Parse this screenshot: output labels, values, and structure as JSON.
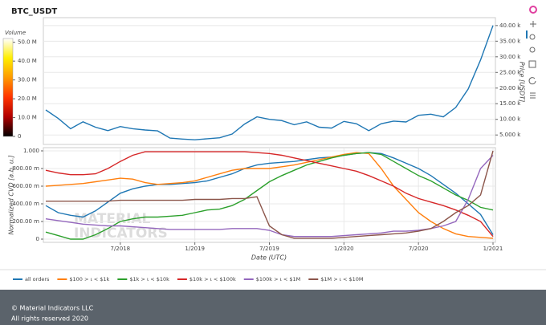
{
  "chart_data": [
    {
      "type": "line",
      "title": "BTC_USDT",
      "y_label": "Price [USDT]",
      "y_axis_side": "right",
      "grid": true,
      "x": [
        "2018-01",
        "2018-02",
        "2018-03",
        "2018-04",
        "2018-05",
        "2018-06",
        "2018-07",
        "2018-08",
        "2018-09",
        "2018-10",
        "2018-11",
        "2018-12",
        "2019-01",
        "2019-02",
        "2019-03",
        "2019-04",
        "2019-05",
        "2019-06",
        "2019-07",
        "2019-08",
        "2019-09",
        "2019-10",
        "2019-11",
        "2019-12",
        "2020-01",
        "2020-02",
        "2020-03",
        "2020-04",
        "2020-05",
        "2020-06",
        "2020-07",
        "2020-08",
        "2020-09",
        "2020-10",
        "2020-11",
        "2020-12",
        "2021-01"
      ],
      "xlim": [
        "2018-01",
        "2021-01"
      ],
      "series": [
        {
          "color": "#1f77b4",
          "values": [
            13000,
            10300,
            7000,
            9200,
            7500,
            6400,
            7700,
            7000,
            6600,
            6300,
            4000,
            3700,
            3450,
            3800,
            4100,
            5300,
            8500,
            10800,
            10000,
            9600,
            8300,
            9200,
            7500,
            7200,
            9350,
            8600,
            6400,
            8600,
            9450,
            9150,
            11300,
            11650,
            10800,
            13800,
            19700,
            29000,
            40000
          ]
        }
      ],
      "ylim": [
        3000,
        41500
      ],
      "yticks": [
        {
          "value": 5000,
          "label": "5.000 k"
        },
        {
          "value": 10000,
          "label": "10.00 k"
        },
        {
          "value": 15000,
          "label": "15.00 k"
        },
        {
          "value": 20000,
          "label": "20.00 k"
        },
        {
          "value": 25000,
          "label": "25.00 k"
        },
        {
          "value": 30000,
          "label": "30.00 k"
        },
        {
          "value": 35000,
          "label": "35.00 k"
        },
        {
          "value": 40000,
          "label": "40.00 k"
        }
      ],
      "colorbar": {
        "label": "Volume",
        "lim": [
          0,
          52000000
        ],
        "colors": [
          "#000000",
          "#b00000",
          "#ff3300",
          "#ff9900",
          "#ffee00",
          "#ffffff"
        ],
        "ticks": [
          0,
          {
            "value": 10000000,
            "label": "10.0 M"
          },
          {
            "value": 20000000,
            "label": "20.0 M"
          },
          {
            "value": 30000000,
            "label": "30.0 M"
          },
          {
            "value": 40000000,
            "label": "40.0 M"
          },
          {
            "value": 50000000,
            "label": "50.0 M"
          }
        ]
      }
    },
    {
      "type": "line",
      "y_label": "Normalized CVD [a.b. u.]",
      "x_label": "Date (UTC)",
      "grid": true,
      "watermark": [
        "MATERIAL",
        "INDICATORS"
      ],
      "x": [
        "2018-01",
        "2018-02",
        "2018-03",
        "2018-04",
        "2018-05",
        "2018-06",
        "2018-07",
        "2018-08",
        "2018-09",
        "2018-10",
        "2018-11",
        "2018-12",
        "2019-01",
        "2019-02",
        "2019-03",
        "2019-04",
        "2019-05",
        "2019-06",
        "2019-07",
        "2019-08",
        "2019-09",
        "2019-10",
        "2019-11",
        "2019-12",
        "2020-01",
        "2020-02",
        "2020-03",
        "2020-04",
        "2020-05",
        "2020-06",
        "2020-07",
        "2020-08",
        "2020-09",
        "2020-10",
        "2020-11",
        "2020-12",
        "2021-01"
      ],
      "xlim": [
        "2018-01",
        "2021-01"
      ],
      "xticks": [
        {
          "value": "2018-07",
          "label": "7/2018"
        },
        {
          "value": "2019-01",
          "label": "1/2019"
        },
        {
          "value": "2019-07",
          "label": "7/2019"
        },
        {
          "value": "2020-01",
          "label": "1/2020"
        },
        {
          "value": "2020-07",
          "label": "7/2020"
        },
        {
          "value": "2021-01",
          "label": "1/2021"
        }
      ],
      "ylim": [
        0,
        1
      ],
      "yticks": [
        0,
        {
          "value": 0.2,
          "label": "200.00 m"
        },
        {
          "value": 0.4,
          "label": "400.00 m"
        },
        {
          "value": 0.6,
          "label": "600.00 m"
        },
        {
          "value": 0.8,
          "label": "800.00 m"
        },
        {
          "value": 1,
          "label": "1.000"
        }
      ],
      "series": [
        {
          "name": "all orders",
          "color": "#1f77b4",
          "values": [
            0.38,
            0.3,
            0.27,
            0.25,
            0.32,
            0.42,
            0.52,
            0.57,
            0.6,
            0.62,
            0.62,
            0.63,
            0.64,
            0.66,
            0.7,
            0.74,
            0.8,
            0.84,
            0.86,
            0.87,
            0.88,
            0.9,
            0.92,
            0.93,
            0.95,
            0.97,
            0.98,
            0.97,
            0.92,
            0.86,
            0.8,
            0.72,
            0.62,
            0.52,
            0.4,
            0.28,
            0.05
          ]
        },
        {
          "name": "$100 > ι < $1k",
          "color": "#ff7f0e",
          "values": [
            0.6,
            0.61,
            0.62,
            0.63,
            0.65,
            0.67,
            0.69,
            0.68,
            0.64,
            0.62,
            0.63,
            0.64,
            0.66,
            0.7,
            0.74,
            0.78,
            0.8,
            0.8,
            0.8,
            0.82,
            0.84,
            0.87,
            0.9,
            0.93,
            0.96,
            0.98,
            0.97,
            0.8,
            0.6,
            0.45,
            0.3,
            0.2,
            0.12,
            0.06,
            0.03,
            0.02,
            0.01
          ]
        },
        {
          "name": "$1k > ι < $10k",
          "color": "#2ca02c",
          "values": [
            0.08,
            0.04,
            0.0,
            0.0,
            0.05,
            0.12,
            0.2,
            0.23,
            0.25,
            0.25,
            0.26,
            0.27,
            0.3,
            0.33,
            0.34,
            0.38,
            0.45,
            0.55,
            0.65,
            0.72,
            0.78,
            0.84,
            0.88,
            0.92,
            0.95,
            0.97,
            0.98,
            0.96,
            0.88,
            0.8,
            0.72,
            0.66,
            0.58,
            0.5,
            0.44,
            0.36,
            0.33
          ]
        },
        {
          "name": "$10k > ι < $100k",
          "color": "#d62728",
          "values": [
            0.78,
            0.75,
            0.73,
            0.73,
            0.74,
            0.8,
            0.88,
            0.95,
            0.99,
            0.99,
            0.99,
            0.99,
            0.99,
            0.99,
            0.99,
            0.99,
            0.99,
            0.98,
            0.97,
            0.95,
            0.92,
            0.89,
            0.86,
            0.83,
            0.8,
            0.77,
            0.72,
            0.66,
            0.6,
            0.52,
            0.46,
            0.42,
            0.38,
            0.33,
            0.27,
            0.2,
            0.03
          ]
        },
        {
          "name": "$100k > ι < $1M",
          "color": "#9467bd",
          "values": [
            0.23,
            0.21,
            0.19,
            0.17,
            0.16,
            0.15,
            0.15,
            0.14,
            0.13,
            0.12,
            0.11,
            0.11,
            0.11,
            0.11,
            0.11,
            0.12,
            0.12,
            0.12,
            0.1,
            0.05,
            0.03,
            0.03,
            0.03,
            0.03,
            0.04,
            0.05,
            0.06,
            0.07,
            0.09,
            0.09,
            0.1,
            0.12,
            0.15,
            0.2,
            0.45,
            0.8,
            0.95
          ]
        },
        {
          "name": "$1M > ι < $10M",
          "color": "#8c564b",
          "values": [
            0.43,
            0.43,
            0.43,
            0.43,
            0.43,
            0.43,
            0.44,
            0.44,
            0.44,
            0.44,
            0.44,
            0.44,
            0.45,
            0.45,
            0.45,
            0.46,
            0.46,
            0.48,
            0.15,
            0.05,
            0.01,
            0.01,
            0.01,
            0.01,
            0.02,
            0.03,
            0.04,
            0.05,
            0.06,
            0.07,
            0.09,
            0.12,
            0.2,
            0.3,
            0.38,
            0.5,
            1.0
          ]
        }
      ]
    }
  ],
  "footer": {
    "copyright": "© Material Indicators LLC",
    "rights": "All rights reserved 2020"
  }
}
